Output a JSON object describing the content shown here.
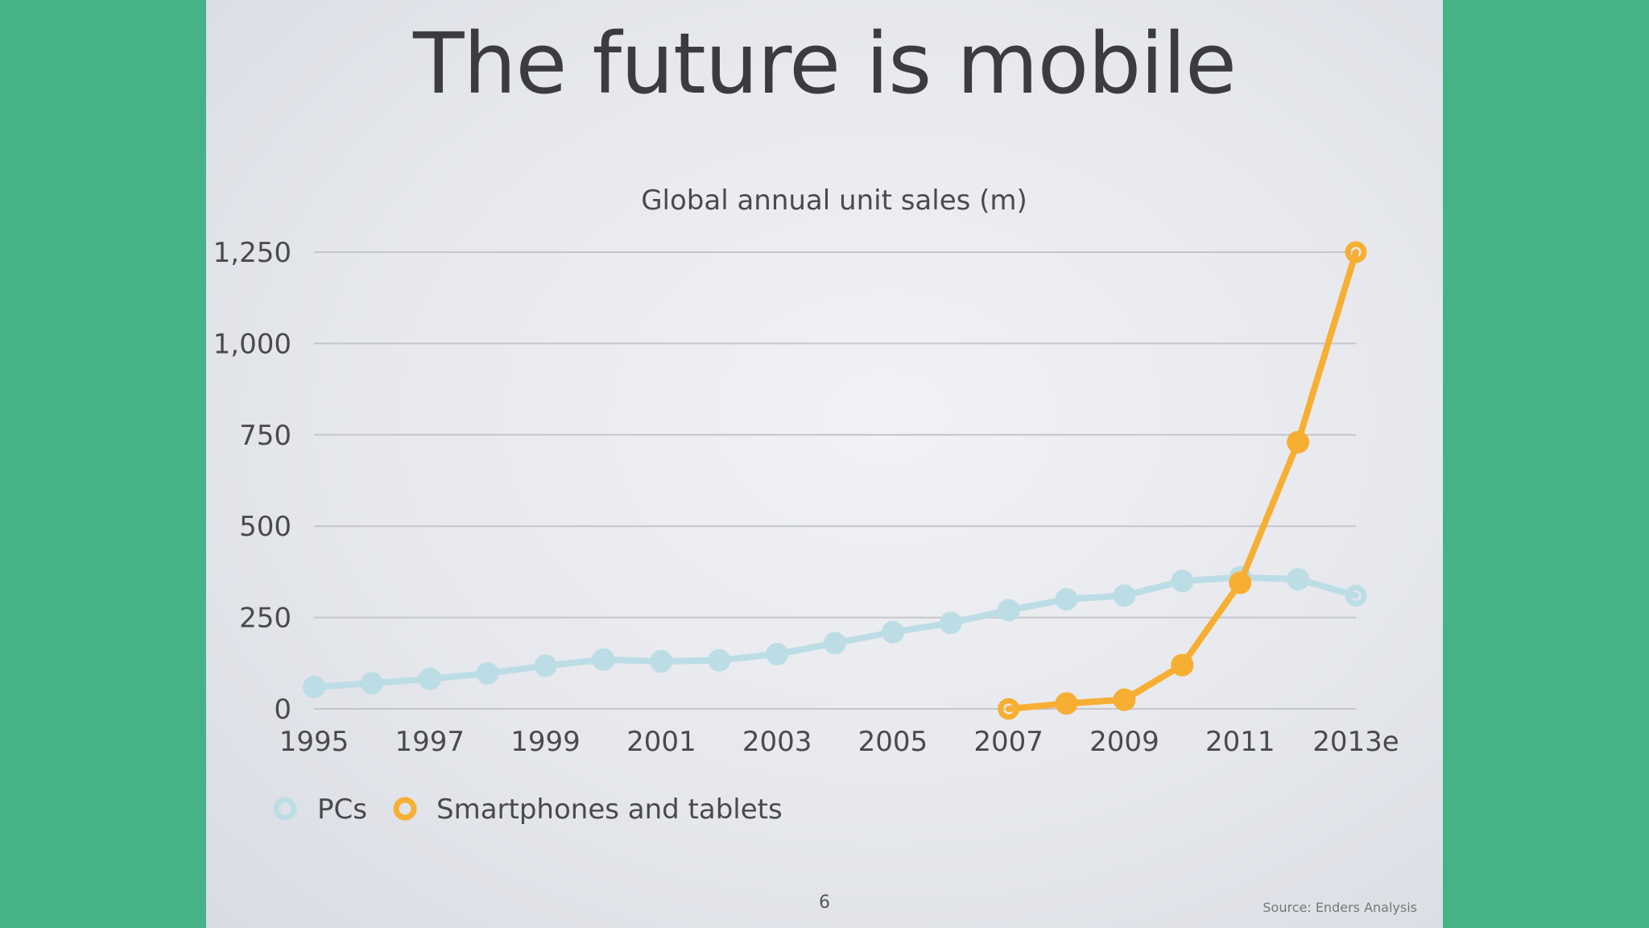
{
  "slide": {
    "title": "The future is mobile",
    "page_number": "6",
    "source": "Source: Enders Analysis"
  },
  "colors": {
    "pcs": "#bcdde5",
    "smartphones": "#f7af33",
    "grid": "#c4c6cc",
    "text": "#4a4a4c"
  },
  "chart_data": {
    "type": "line",
    "title": "Global annual unit sales (m)",
    "xlabel": "",
    "ylabel": "",
    "x": [
      "1995",
      "1996",
      "1997",
      "1998",
      "1999",
      "2000",
      "2001",
      "2002",
      "2003",
      "2004",
      "2005",
      "2006",
      "2007",
      "2008",
      "2009",
      "2010",
      "2011",
      "2012",
      "2013e"
    ],
    "x_tick_labels": [
      "1995",
      "1997",
      "1999",
      "2001",
      "2003",
      "2005",
      "2007",
      "2009",
      "2011",
      "2013e"
    ],
    "y_ticks": [
      0,
      250,
      500,
      750,
      1000,
      1250
    ],
    "y_tick_labels": [
      "0",
      "250",
      "500",
      "750",
      "1,000",
      "1,250"
    ],
    "ylim": [
      0,
      1250
    ],
    "grid": true,
    "legend_position": "bottom-left",
    "series": [
      {
        "name": "PCs",
        "color": "#bcdde5",
        "values": [
          60,
          70,
          82,
          97,
          118,
          135,
          130,
          133,
          150,
          180,
          210,
          235,
          270,
          300,
          310,
          350,
          360,
          355,
          310
        ]
      },
      {
        "name": "Smartphones and tablets",
        "color": "#f7af33",
        "values": [
          null,
          null,
          null,
          null,
          null,
          null,
          null,
          null,
          null,
          null,
          null,
          null,
          0,
          15,
          25,
          120,
          345,
          730,
          1250
        ]
      }
    ]
  }
}
